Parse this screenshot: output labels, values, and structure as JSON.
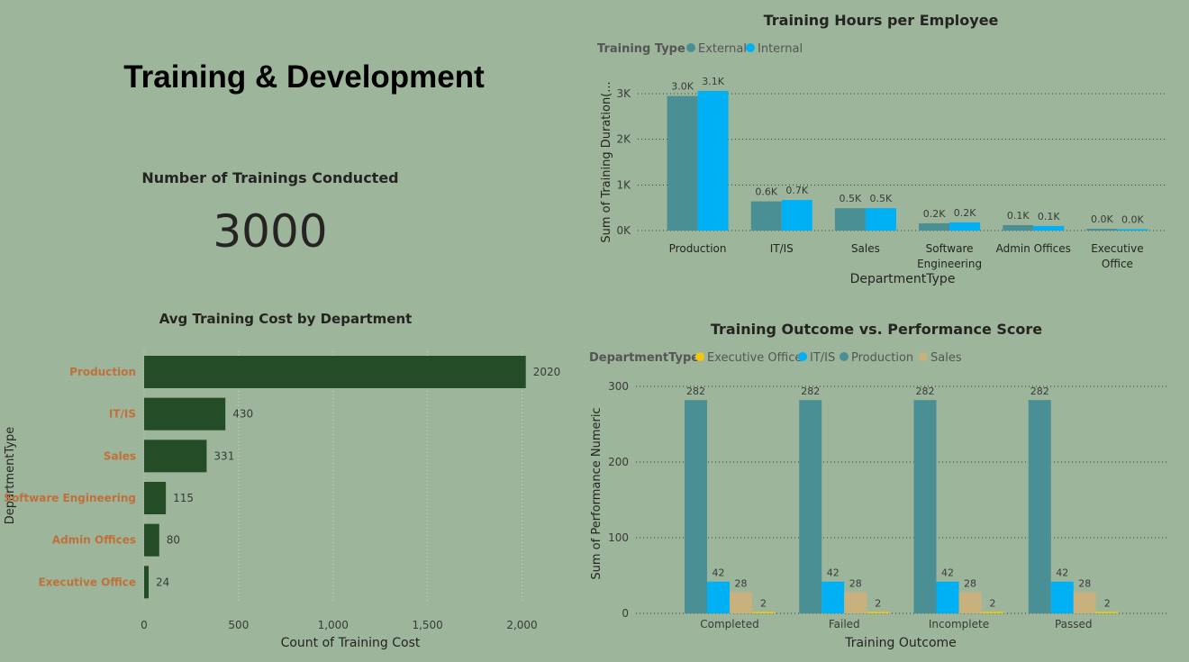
{
  "page": {
    "title": "Training & Development",
    "kpi_label": "Number of Trainings Conducted",
    "kpi_value": "3000"
  },
  "colors": {
    "background": "#9db59b",
    "external": "#4a8f94",
    "internal": "#00b0f5",
    "bar_dark": "#244c26",
    "executive_office": "#f2c80f",
    "it_is": "#00b0f5",
    "production": "#4a8f94",
    "sales": "#c9b17d",
    "axis_text": "#3a3a3a",
    "category_orange": "#c0703a"
  },
  "chart_data": [
    {
      "id": "hours",
      "type": "bar",
      "title": "Training Hours per Employee",
      "legend_title": "Training Type",
      "legend_placement": "top-left",
      "xlabel": "DepartmentType",
      "ylabel": "Sum of Training Duration(...",
      "ylim": [
        0,
        3000
      ],
      "yticks": [
        0,
        1000,
        2000,
        3000
      ],
      "ytick_labels": [
        "0K",
        "1K",
        "2K",
        "3K"
      ],
      "grid": true,
      "categories": [
        [
          "Production"
        ],
        [
          "IT/IS"
        ],
        [
          "Sales"
        ],
        [
          "Software",
          "Engineering"
        ],
        [
          "Admin Offices"
        ],
        [
          "Executive",
          "Office"
        ]
      ],
      "series": [
        {
          "name": "External",
          "values": [
            2950,
            640,
            490,
            160,
            120,
            40
          ],
          "labels": [
            "3.0K",
            "0.6K",
            "0.5K",
            "0.2K",
            "0.1K",
            "0.0K"
          ]
        },
        {
          "name": "Internal",
          "values": [
            3060,
            670,
            490,
            180,
            100,
            30
          ],
          "labels": [
            "3.1K",
            "0.7K",
            "0.5K",
            "0.2K",
            "0.1K",
            "0.0K"
          ]
        }
      ]
    },
    {
      "id": "cost",
      "type": "bar",
      "orientation": "horizontal",
      "title": "Avg Training Cost by Department",
      "xlabel": "Count of Training Cost",
      "ylabel": "DepartmentType",
      "xlim": [
        0,
        2050
      ],
      "xticks": [
        0,
        500,
        1000,
        1500,
        2000
      ],
      "xtick_labels": [
        "0",
        "500",
        "1,000",
        "1,500",
        "2,000"
      ],
      "grid": true,
      "categories": [
        "Production",
        "IT/IS",
        "Sales",
        "Software Engineering",
        "Admin Offices",
        "Executive Office"
      ],
      "values": [
        2020,
        430,
        331,
        115,
        80,
        24
      ],
      "labels": [
        "2020",
        "430",
        "331",
        "115",
        "80",
        "24"
      ]
    },
    {
      "id": "outcome",
      "type": "bar",
      "title": "Training Outcome vs. Performance Score",
      "legend_title": "DepartmentType",
      "legend_placement": "top-left",
      "xlabel": "Training Outcome",
      "ylabel": "Sum of Performance Numeric",
      "ylim": [
        0,
        300
      ],
      "yticks": [
        0,
        100,
        200,
        300
      ],
      "ytick_labels": [
        "0",
        "100",
        "200",
        "300"
      ],
      "grid": true,
      "categories": [
        "Completed",
        "Failed",
        "Incomplete",
        "Passed"
      ],
      "series": [
        {
          "name": "Production",
          "values": [
            282,
            282,
            282,
            282
          ],
          "labels": [
            "282",
            "282",
            "282",
            "282"
          ]
        },
        {
          "name": "IT/IS",
          "values": [
            42,
            42,
            42,
            42
          ],
          "labels": [
            "42",
            "42",
            "42",
            "42"
          ]
        },
        {
          "name": "Sales",
          "values": [
            28,
            28,
            28,
            28
          ],
          "labels": [
            "28",
            "28",
            "28",
            "28"
          ]
        },
        {
          "name": "Executive Office",
          "values": [
            2,
            2,
            2,
            2
          ],
          "labels": [
            "2",
            "2",
            "2",
            "2"
          ]
        }
      ],
      "legend_order": [
        "Executive Office",
        "IT/IS",
        "Production",
        "Sales"
      ]
    }
  ]
}
